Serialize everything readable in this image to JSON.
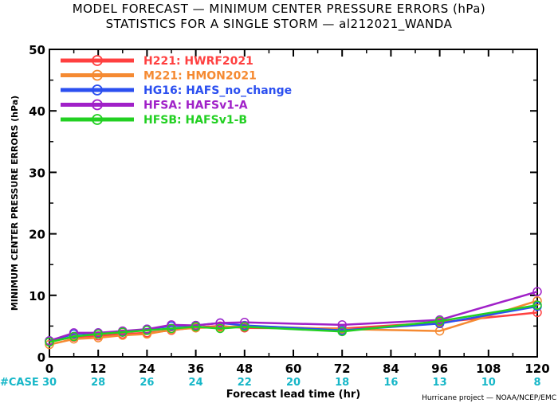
{
  "chart_data": {
    "type": "line",
    "title": "MODEL FORECAST — MINIMUM CENTER PRESSURE ERRORS (hPa)",
    "subtitle": "STATISTICS FOR A SINGLE STORM — al212021_WANDA",
    "xlabel": "Forecast lead time (hr)",
    "ylabel": "MINIMUM CENTER PRESSURE ERRORS (hPa)",
    "xlim": [
      0,
      120
    ],
    "ylim": [
      0,
      50
    ],
    "xticks": [
      "0",
      "12",
      "24",
      "36",
      "48",
      "60",
      "72",
      "84",
      "96",
      "108",
      "120"
    ],
    "yticks": [
      "0",
      "10",
      "20",
      "30",
      "40",
      "50"
    ],
    "grid": false,
    "legend_position": "top-left",
    "case_label": "#CASE",
    "case_x": [
      0,
      12,
      24,
      36,
      48,
      60,
      72,
      84,
      96,
      108,
      120
    ],
    "cases": [
      "30",
      "28",
      "26",
      "24",
      "22",
      "20",
      "18",
      "16",
      "13",
      "10",
      "8"
    ],
    "credit": "Hurricane project — NOAA/NCEP/EMC",
    "series": [
      {
        "name": "H221: HWRF2021",
        "color": "#ff4040",
        "x": [
          0,
          6,
          12,
          18,
          24,
          30,
          36,
          42,
          48,
          72,
          96,
          120
        ],
        "y": [
          2.5,
          3.2,
          3.4,
          3.7,
          3.9,
          4.3,
          4.8,
          5.0,
          4.7,
          4.6,
          5.6,
          7.2
        ]
      },
      {
        "name": "M221: HMON2021",
        "color": "#f58a32",
        "x": [
          0,
          6,
          12,
          18,
          24,
          30,
          36,
          42,
          48,
          72,
          96,
          120
        ],
        "y": [
          2.0,
          2.9,
          3.1,
          3.5,
          3.7,
          4.4,
          4.7,
          4.8,
          5.0,
          4.5,
          4.2,
          9.1
        ]
      },
      {
        "name": "HG16: HAFS_no_change",
        "color": "#2b4ff0",
        "x": [
          0,
          6,
          12,
          18,
          24,
          30,
          36,
          42,
          48,
          72,
          96,
          120
        ],
        "y": [
          2.6,
          3.7,
          3.9,
          4.0,
          4.5,
          5.0,
          5.1,
          5.5,
          5.1,
          4.3,
          5.4,
          8.2
        ]
      },
      {
        "name": "HFSA: HAFSv1-A",
        "color": "#a020c8",
        "x": [
          0,
          6,
          12,
          18,
          24,
          30,
          36,
          42,
          48,
          72,
          96,
          120
        ],
        "y": [
          2.6,
          3.9,
          3.9,
          4.2,
          4.5,
          5.2,
          5.1,
          5.5,
          5.6,
          5.2,
          6.0,
          10.6
        ]
      },
      {
        "name": "HFSB: HAFSv1-B",
        "color": "#22d022",
        "x": [
          0,
          6,
          12,
          18,
          24,
          30,
          36,
          42,
          48,
          72,
          96,
          120
        ],
        "y": [
          2.4,
          3.3,
          3.7,
          4.0,
          4.3,
          4.6,
          4.9,
          4.6,
          4.9,
          4.1,
          5.8,
          8.4
        ]
      }
    ]
  }
}
